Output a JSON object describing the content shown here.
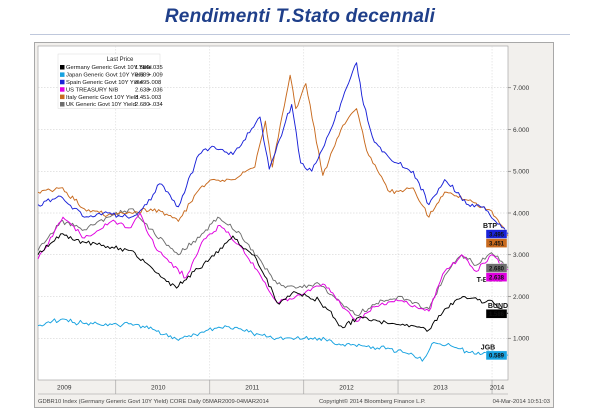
{
  "heading": "Rendimenti T.Stato decennali",
  "chart_data": {
    "type": "line",
    "x_start": "2009-03-05",
    "x_end": "2014-03-04",
    "ylim": [
      0,
      8
    ],
    "y_ticks": [
      {
        "value": 1,
        "label": "1.000"
      },
      {
        "value": 2,
        "label": "2.000"
      },
      {
        "value": 3,
        "label": "3.000"
      },
      {
        "value": 4,
        "label": "4.000"
      },
      {
        "value": 5,
        "label": "5.000"
      },
      {
        "value": 6,
        "label": "6.000"
      },
      {
        "value": 7,
        "label": "7.000"
      }
    ],
    "x_ticks": [
      {
        "date": "2009-06-15",
        "label": "2009"
      },
      {
        "date": "2010-06-15",
        "label": "2010"
      },
      {
        "date": "2011-06-15",
        "label": "2011"
      },
      {
        "date": "2012-06-15",
        "label": "2012"
      },
      {
        "date": "2013-06-15",
        "label": "2013"
      },
      {
        "date": "2014-01-20",
        "label": "2014"
      }
    ],
    "x_separators": [
      "2010-01-01",
      "2011-01-01",
      "2012-01-01",
      "2013-01-01",
      "2014-01-01"
    ],
    "legend": {
      "header": "Last Price",
      "placement": "top-left"
    },
    "series": [
      {
        "name": "Germany Generic Govt 10Y Yield",
        "last": "1.586",
        "change": "+.035",
        "end_label": "BUND",
        "color": "#000000",
        "points": [
          [
            "2009-03-05",
            3.0
          ],
          [
            "2009-06-01",
            3.5
          ],
          [
            "2009-09-01",
            3.3
          ],
          [
            "2009-12-01",
            3.2
          ],
          [
            "2010-03-01",
            3.1
          ],
          [
            "2010-06-01",
            2.6
          ],
          [
            "2010-08-25",
            2.2
          ],
          [
            "2010-11-01",
            2.6
          ],
          [
            "2011-01-01",
            2.9
          ],
          [
            "2011-04-01",
            3.45
          ],
          [
            "2011-07-01",
            2.9
          ],
          [
            "2011-09-20",
            1.85
          ],
          [
            "2011-12-01",
            2.1
          ],
          [
            "2012-03-01",
            1.9
          ],
          [
            "2012-06-01",
            1.25
          ],
          [
            "2012-08-01",
            1.5
          ],
          [
            "2012-12-01",
            1.35
          ],
          [
            "2013-03-01",
            1.3
          ],
          [
            "2013-05-01",
            1.2
          ],
          [
            "2013-07-01",
            1.7
          ],
          [
            "2013-09-10",
            2.0
          ],
          [
            "2013-12-01",
            1.85
          ],
          [
            "2014-01-01",
            1.9
          ],
          [
            "2014-03-04",
            1.586
          ]
        ]
      },
      {
        "name": "Japan Generic Govt 10Y Yield",
        "last": "0.589",
        "change": "+.009",
        "end_label": "JGB",
        "color": "#17a2e0",
        "points": [
          [
            "2009-03-05",
            1.3
          ],
          [
            "2009-06-01",
            1.45
          ],
          [
            "2009-09-01",
            1.35
          ],
          [
            "2009-12-01",
            1.3
          ],
          [
            "2010-03-01",
            1.35
          ],
          [
            "2010-06-01",
            1.2
          ],
          [
            "2010-09-01",
            0.95
          ],
          [
            "2010-12-01",
            1.15
          ],
          [
            "2011-03-01",
            1.3
          ],
          [
            "2011-06-01",
            1.15
          ],
          [
            "2011-09-01",
            1.0
          ],
          [
            "2011-12-01",
            1.0
          ],
          [
            "2012-03-01",
            1.0
          ],
          [
            "2012-06-01",
            0.85
          ],
          [
            "2012-09-01",
            0.8
          ],
          [
            "2012-12-01",
            0.75
          ],
          [
            "2013-03-01",
            0.6
          ],
          [
            "2013-04-05",
            0.45
          ],
          [
            "2013-05-20",
            0.9
          ],
          [
            "2013-08-01",
            0.8
          ],
          [
            "2013-11-01",
            0.62
          ],
          [
            "2014-01-01",
            0.7
          ],
          [
            "2014-03-04",
            0.589
          ]
        ]
      },
      {
        "name": "Spain Generic Govt 10Y Yield",
        "last": "3.495",
        "change": "-.008",
        "end_label": "",
        "color": "#1a22d8",
        "points": [
          [
            "2009-03-05",
            4.2
          ],
          [
            "2009-06-01",
            4.4
          ],
          [
            "2009-09-01",
            3.9
          ],
          [
            "2009-12-01",
            4.0
          ],
          [
            "2010-03-01",
            3.9
          ],
          [
            "2010-05-01",
            4.2
          ],
          [
            "2010-06-20",
            4.7
          ],
          [
            "2010-09-01",
            4.15
          ],
          [
            "2010-11-20",
            5.4
          ],
          [
            "2011-01-10",
            5.6
          ],
          [
            "2011-04-01",
            5.4
          ],
          [
            "2011-07-15",
            6.3
          ],
          [
            "2011-08-20",
            5.05
          ],
          [
            "2011-11-15",
            6.6
          ],
          [
            "2011-12-20",
            5.2
          ],
          [
            "2012-02-01",
            5.0
          ],
          [
            "2012-04-15",
            6.0
          ],
          [
            "2012-07-24",
            7.6
          ],
          [
            "2012-08-20",
            6.6
          ],
          [
            "2012-10-01",
            5.7
          ],
          [
            "2012-12-01",
            5.3
          ],
          [
            "2013-03-01",
            5.0
          ],
          [
            "2013-05-01",
            4.2
          ],
          [
            "2013-07-01",
            4.8
          ],
          [
            "2013-10-01",
            4.2
          ],
          [
            "2013-12-01",
            4.15
          ],
          [
            "2014-01-15",
            3.8
          ],
          [
            "2014-03-04",
            3.495
          ]
        ]
      },
      {
        "name": "US TREASURY N/B",
        "last": "2.638",
        "change": "+.036",
        "end_label": "T-BOND",
        "color": "#e000e0",
        "points": [
          [
            "2009-03-05",
            2.9
          ],
          [
            "2009-06-10",
            3.9
          ],
          [
            "2009-09-01",
            3.4
          ],
          [
            "2009-12-15",
            3.8
          ],
          [
            "2010-03-01",
            3.65
          ],
          [
            "2010-04-05",
            4.0
          ],
          [
            "2010-06-01",
            3.2
          ],
          [
            "2010-10-01",
            2.45
          ],
          [
            "2010-12-01",
            3.3
          ],
          [
            "2011-02-10",
            3.7
          ],
          [
            "2011-05-01",
            3.2
          ],
          [
            "2011-09-20",
            1.85
          ],
          [
            "2011-12-01",
            2.0
          ],
          [
            "2012-03-15",
            2.3
          ],
          [
            "2012-07-25",
            1.4
          ],
          [
            "2012-10-01",
            1.75
          ],
          [
            "2013-01-01",
            1.9
          ],
          [
            "2013-05-01",
            1.65
          ],
          [
            "2013-07-01",
            2.6
          ],
          [
            "2013-09-05",
            3.0
          ],
          [
            "2013-11-01",
            2.6
          ],
          [
            "2013-12-30",
            3.0
          ],
          [
            "2014-03-04",
            2.638
          ]
        ]
      },
      {
        "name": "Italy Generic Govt 10Y Yield",
        "last": "3.451",
        "change": "-.003",
        "end_label": "BTP",
        "color": "#c86a1e",
        "points": [
          [
            "2009-03-05",
            4.5
          ],
          [
            "2009-06-01",
            4.6
          ],
          [
            "2009-09-01",
            4.1
          ],
          [
            "2009-12-01",
            3.95
          ],
          [
            "2010-03-01",
            4.0
          ],
          [
            "2010-06-01",
            4.1
          ],
          [
            "2010-09-01",
            3.8
          ],
          [
            "2010-11-25",
            4.6
          ],
          [
            "2011-01-10",
            4.8
          ],
          [
            "2011-04-01",
            4.8
          ],
          [
            "2011-06-25",
            5.1
          ],
          [
            "2011-08-05",
            6.2
          ],
          [
            "2011-09-01",
            5.1
          ],
          [
            "2011-11-09",
            7.3
          ],
          [
            "2011-12-01",
            6.5
          ],
          [
            "2012-01-09",
            7.1
          ],
          [
            "2012-03-15",
            4.9
          ],
          [
            "2012-06-01",
            6.1
          ],
          [
            "2012-07-24",
            6.5
          ],
          [
            "2012-09-01",
            5.5
          ],
          [
            "2012-12-01",
            4.5
          ],
          [
            "2013-03-01",
            4.6
          ],
          [
            "2013-05-01",
            3.9
          ],
          [
            "2013-07-01",
            4.5
          ],
          [
            "2013-10-01",
            4.3
          ],
          [
            "2013-12-01",
            4.15
          ],
          [
            "2014-01-15",
            3.9
          ],
          [
            "2014-03-04",
            3.451
          ]
        ]
      },
      {
        "name": "UK Generic Govt 10Y Yield",
        "last": "2.680",
        "change": "+.034",
        "end_label": "",
        "color": "#6e6e6e",
        "points": [
          [
            "2009-03-05",
            3.1
          ],
          [
            "2009-06-01",
            3.8
          ],
          [
            "2009-09-01",
            3.6
          ],
          [
            "2009-12-01",
            3.9
          ],
          [
            "2010-03-01",
            4.1
          ],
          [
            "2010-06-01",
            3.5
          ],
          [
            "2010-09-01",
            3.0
          ],
          [
            "2010-12-01",
            3.5
          ],
          [
            "2011-02-01",
            3.9
          ],
          [
            "2011-05-01",
            3.5
          ],
          [
            "2011-09-20",
            2.3
          ],
          [
            "2011-12-01",
            2.2
          ],
          [
            "2012-03-01",
            2.3
          ],
          [
            "2012-07-25",
            1.55
          ],
          [
            "2012-10-01",
            1.8
          ],
          [
            "2013-01-01",
            2.0
          ],
          [
            "2013-05-01",
            1.7
          ],
          [
            "2013-07-01",
            2.5
          ],
          [
            "2013-09-05",
            3.0
          ],
          [
            "2013-11-01",
            2.75
          ],
          [
            "2013-12-30",
            3.05
          ],
          [
            "2014-03-04",
            2.68
          ]
        ]
      }
    ]
  },
  "footer": {
    "left": "GDBR10 Index (Germany Generic Govt 10Y Yield) CORE Daily 05MAR2009-04MAR2014",
    "center": "Copyright© 2014 Bloomberg Finance L.P.",
    "right": "04-Mar-2014 10:51:03"
  }
}
